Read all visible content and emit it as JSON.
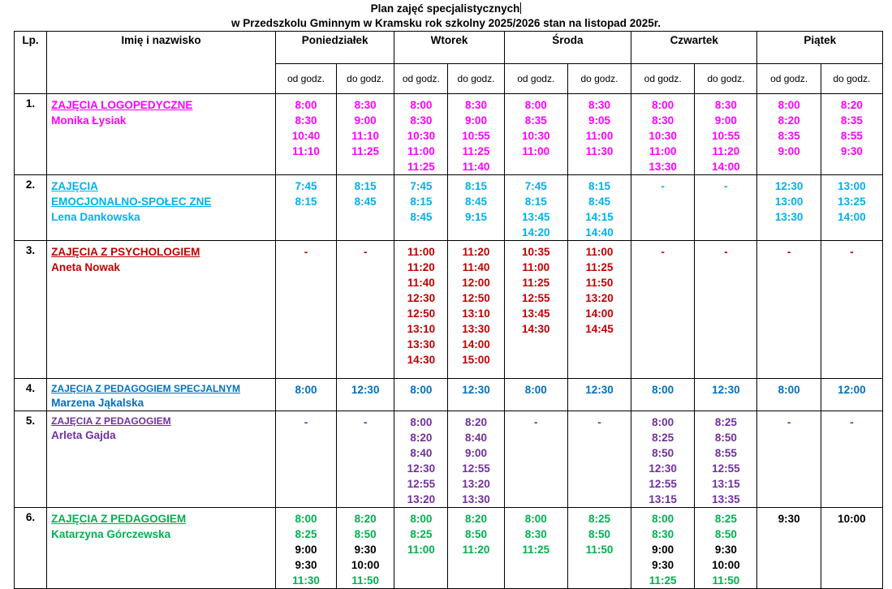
{
  "title_line1": "Plan zajęć specjalistycznych",
  "title_line2": "w Przedszkolu Gminnym w Kramsku rok szkolny 2025/2026  stan na listopad 2025r.",
  "headers": {
    "lp": "Lp.",
    "name": "Imię i nazwisko",
    "days": [
      "Poniedziałek",
      "Wtorek",
      "Środa",
      "Czwartek",
      "Piątek"
    ],
    "from": "od godz.",
    "to": "do godz."
  },
  "colors": {
    "magenta": "#ff00ff",
    "cyan": "#00b0f0",
    "red": "#c00000",
    "blue": "#0070c0",
    "purple": "#7030a0",
    "green": "#00b050",
    "black": "#000000"
  },
  "rows": [
    {
      "lp": "1.",
      "subject": [
        "ZAJĘCIA LOGOPEDYCZNE"
      ],
      "person": "Monika Łysiak",
      "color": "magenta",
      "height": 94,
      "cells": [
        [
          [
            "8:00"
          ],
          [
            "8:30"
          ],
          [
            "10:40"
          ],
          [
            "11:10"
          ]
        ],
        [
          [
            "8:30"
          ],
          [
            "9:00"
          ],
          [
            "11:10"
          ],
          [
            "11:25"
          ]
        ],
        [
          [
            "8:00"
          ],
          [
            "8:30"
          ],
          [
            "10:30"
          ],
          [
            "11:00"
          ],
          [
            "11:25"
          ]
        ],
        [
          [
            "8:30"
          ],
          [
            "9:00"
          ],
          [
            "10:55"
          ],
          [
            "11:25"
          ],
          [
            "11:40"
          ]
        ],
        [
          [
            "8:00"
          ],
          [
            "8:35"
          ],
          [
            "10:30"
          ],
          [
            "11:00"
          ]
        ],
        [
          [
            "8:30"
          ],
          [
            "9:05"
          ],
          [
            "11:00"
          ],
          [
            "11:30"
          ]
        ],
        [
          [
            "8:00"
          ],
          [
            "8:30"
          ],
          [
            "10:30"
          ],
          [
            "11:00"
          ],
          [
            "13:30"
          ]
        ],
        [
          [
            "8:30"
          ],
          [
            "9:00"
          ],
          [
            "10:55"
          ],
          [
            "11:20"
          ],
          [
            "14:00"
          ]
        ],
        [
          [
            "8:00"
          ],
          [
            "8:20"
          ],
          [
            "8:35"
          ],
          [
            "9:00"
          ]
        ],
        [
          [
            "8:20"
          ],
          [
            "8:35"
          ],
          [
            "8:55"
          ],
          [
            "9:30"
          ]
        ]
      ]
    },
    {
      "lp": "2.",
      "subject": [
        "ZAJĘCIA",
        "EMOCJONALNO-SPOŁEC ZNE"
      ],
      "person": "Lena Dankowska",
      "color": "cyan",
      "height": 77,
      "cells": [
        [
          [
            "7:45"
          ],
          [
            "8:15"
          ]
        ],
        [
          [
            "8:15"
          ],
          [
            "8:45"
          ]
        ],
        [
          [
            "7:45"
          ],
          [
            "8:15"
          ],
          [
            "8:45"
          ]
        ],
        [
          [
            "8:15"
          ],
          [
            "8:45"
          ],
          [
            "9:15"
          ]
        ],
        [
          [
            "7:45"
          ],
          [
            "8:15"
          ],
          [
            "13:45"
          ],
          [
            "14:20"
          ]
        ],
        [
          [
            "8:15"
          ],
          [
            "8:45"
          ],
          [
            "14:15"
          ],
          [
            "14:40"
          ]
        ],
        [
          [
            "-"
          ]
        ],
        [
          [
            "-"
          ]
        ],
        [
          [
            "12:30"
          ],
          [
            "13:00"
          ],
          [
            "13:30"
          ]
        ],
        [
          [
            "13:00"
          ],
          [
            "13:25"
          ],
          [
            "14:00"
          ]
        ]
      ]
    },
    {
      "lp": "3.",
      "subject": [
        "ZAJĘCIA Z PSYCHOLOGIEM"
      ],
      "person": "Aneta Nowak",
      "color": "red",
      "height": 170,
      "cells": [
        [
          [
            "-"
          ]
        ],
        [
          [
            "-"
          ]
        ],
        [
          [
            "11:00"
          ],
          [
            "11:20"
          ],
          [
            "11:40"
          ],
          [
            "12:30"
          ],
          [
            "12:50"
          ],
          [
            "13:10"
          ],
          [
            "13:30"
          ],
          [
            "14:30"
          ]
        ],
        [
          [
            "11:20"
          ],
          [
            "11:40"
          ],
          [
            "12:00"
          ],
          [
            "12:50"
          ],
          [
            "13:10"
          ],
          [
            "13:30"
          ],
          [
            "14:00"
          ],
          [
            "15:00"
          ]
        ],
        [
          [
            "10:35"
          ],
          [
            "11:00"
          ],
          [
            "11:25"
          ],
          [
            "12:55"
          ],
          [
            "13:45"
          ],
          [
            "14:30"
          ]
        ],
        [
          [
            "11:00"
          ],
          [
            "11:25"
          ],
          [
            "11:50"
          ],
          [
            "13:20"
          ],
          [
            "14:00"
          ],
          [
            "14:45"
          ]
        ],
        [
          [
            "-"
          ]
        ],
        [
          [
            "-"
          ]
        ],
        [
          [
            "-"
          ]
        ],
        [
          [
            "-"
          ]
        ]
      ]
    },
    {
      "lp": "4.",
      "subject": [
        "ZAJĘCIA Z PEDAGOGIEM SPECJALNYM"
      ],
      "subject_small": true,
      "person": "Marzena Jąkalska",
      "color": "blue",
      "height": 39,
      "cells": [
        [
          [
            "8:00"
          ]
        ],
        [
          [
            "12:30"
          ]
        ],
        [
          [
            "8:00"
          ]
        ],
        [
          [
            "12:30"
          ]
        ],
        [
          [
            "8:00"
          ]
        ],
        [
          [
            "12:30"
          ]
        ],
        [
          [
            "8:00"
          ]
        ],
        [
          [
            "12:30"
          ]
        ],
        [
          [
            "8:00"
          ]
        ],
        [
          [
            "12:00"
          ]
        ]
      ]
    },
    {
      "lp": "5.",
      "subject": [
        "ZAJĘCIA Z PEDAGOGIEM"
      ],
      "subject_small": true,
      "person": "Arleta Gajda",
      "color": "purple",
      "height": 115,
      "cells": [
        [
          [
            "-"
          ]
        ],
        [
          [
            "-"
          ]
        ],
        [
          [
            "8:00"
          ],
          [
            "8:20"
          ],
          [
            "8:40"
          ],
          [
            "12:30"
          ],
          [
            "12:55"
          ],
          [
            "13:20"
          ]
        ],
        [
          [
            "8:20"
          ],
          [
            "8:40"
          ],
          [
            "9:00"
          ],
          [
            "12:55"
          ],
          [
            "13:20"
          ],
          [
            "13:30"
          ]
        ],
        [
          [
            "-"
          ]
        ],
        [
          [
            "-"
          ]
        ],
        [
          [
            "8:00"
          ],
          [
            "8:25"
          ],
          [
            "8:50"
          ],
          [
            "12:30"
          ],
          [
            "12:55"
          ],
          [
            "13:15"
          ]
        ],
        [
          [
            "8:25"
          ],
          [
            "8:50"
          ],
          [
            "8:55"
          ],
          [
            "12:55"
          ],
          [
            "13:15"
          ],
          [
            "13:35"
          ]
        ],
        [
          [
            "-"
          ]
        ],
        [
          [
            "-"
          ]
        ]
      ]
    },
    {
      "lp": "6.",
      "subject": [
        " ZAJĘCIA Z PEDAGOGIEM"
      ],
      "person": "Katarzyna Górczewska",
      "color": "green",
      "height": 95,
      "cells": [
        [
          [
            "8:00"
          ],
          [
            "8:25"
          ],
          [
            "9:00",
            "black"
          ],
          [
            "9:30",
            "black"
          ],
          [
            "11:30"
          ]
        ],
        [
          [
            "8:20"
          ],
          [
            "8:50"
          ],
          [
            "9:30",
            "black"
          ],
          [
            "10:00",
            "black"
          ],
          [
            "11:50"
          ]
        ],
        [
          [
            "8:00"
          ],
          [
            "8:25"
          ],
          [
            "11:00"
          ]
        ],
        [
          [
            "8:20"
          ],
          [
            "8:50"
          ],
          [
            "11:20"
          ]
        ],
        [
          [
            "8:00"
          ],
          [
            "8:30"
          ],
          [
            "11:25"
          ]
        ],
        [
          [
            "8:25"
          ],
          [
            "8:50"
          ],
          [
            "11:50"
          ]
        ],
        [
          [
            "8:00"
          ],
          [
            "8:30"
          ],
          [
            "9:00",
            "black"
          ],
          [
            "9:30",
            "black"
          ],
          [
            "11:25"
          ]
        ],
        [
          [
            "8:25"
          ],
          [
            "8:50"
          ],
          [
            "9:30",
            "black"
          ],
          [
            "10:00",
            "black"
          ],
          [
            "11:50"
          ]
        ],
        [
          [
            "9:30",
            "black"
          ]
        ],
        [
          [
            "10:00",
            "black"
          ]
        ]
      ]
    }
  ]
}
